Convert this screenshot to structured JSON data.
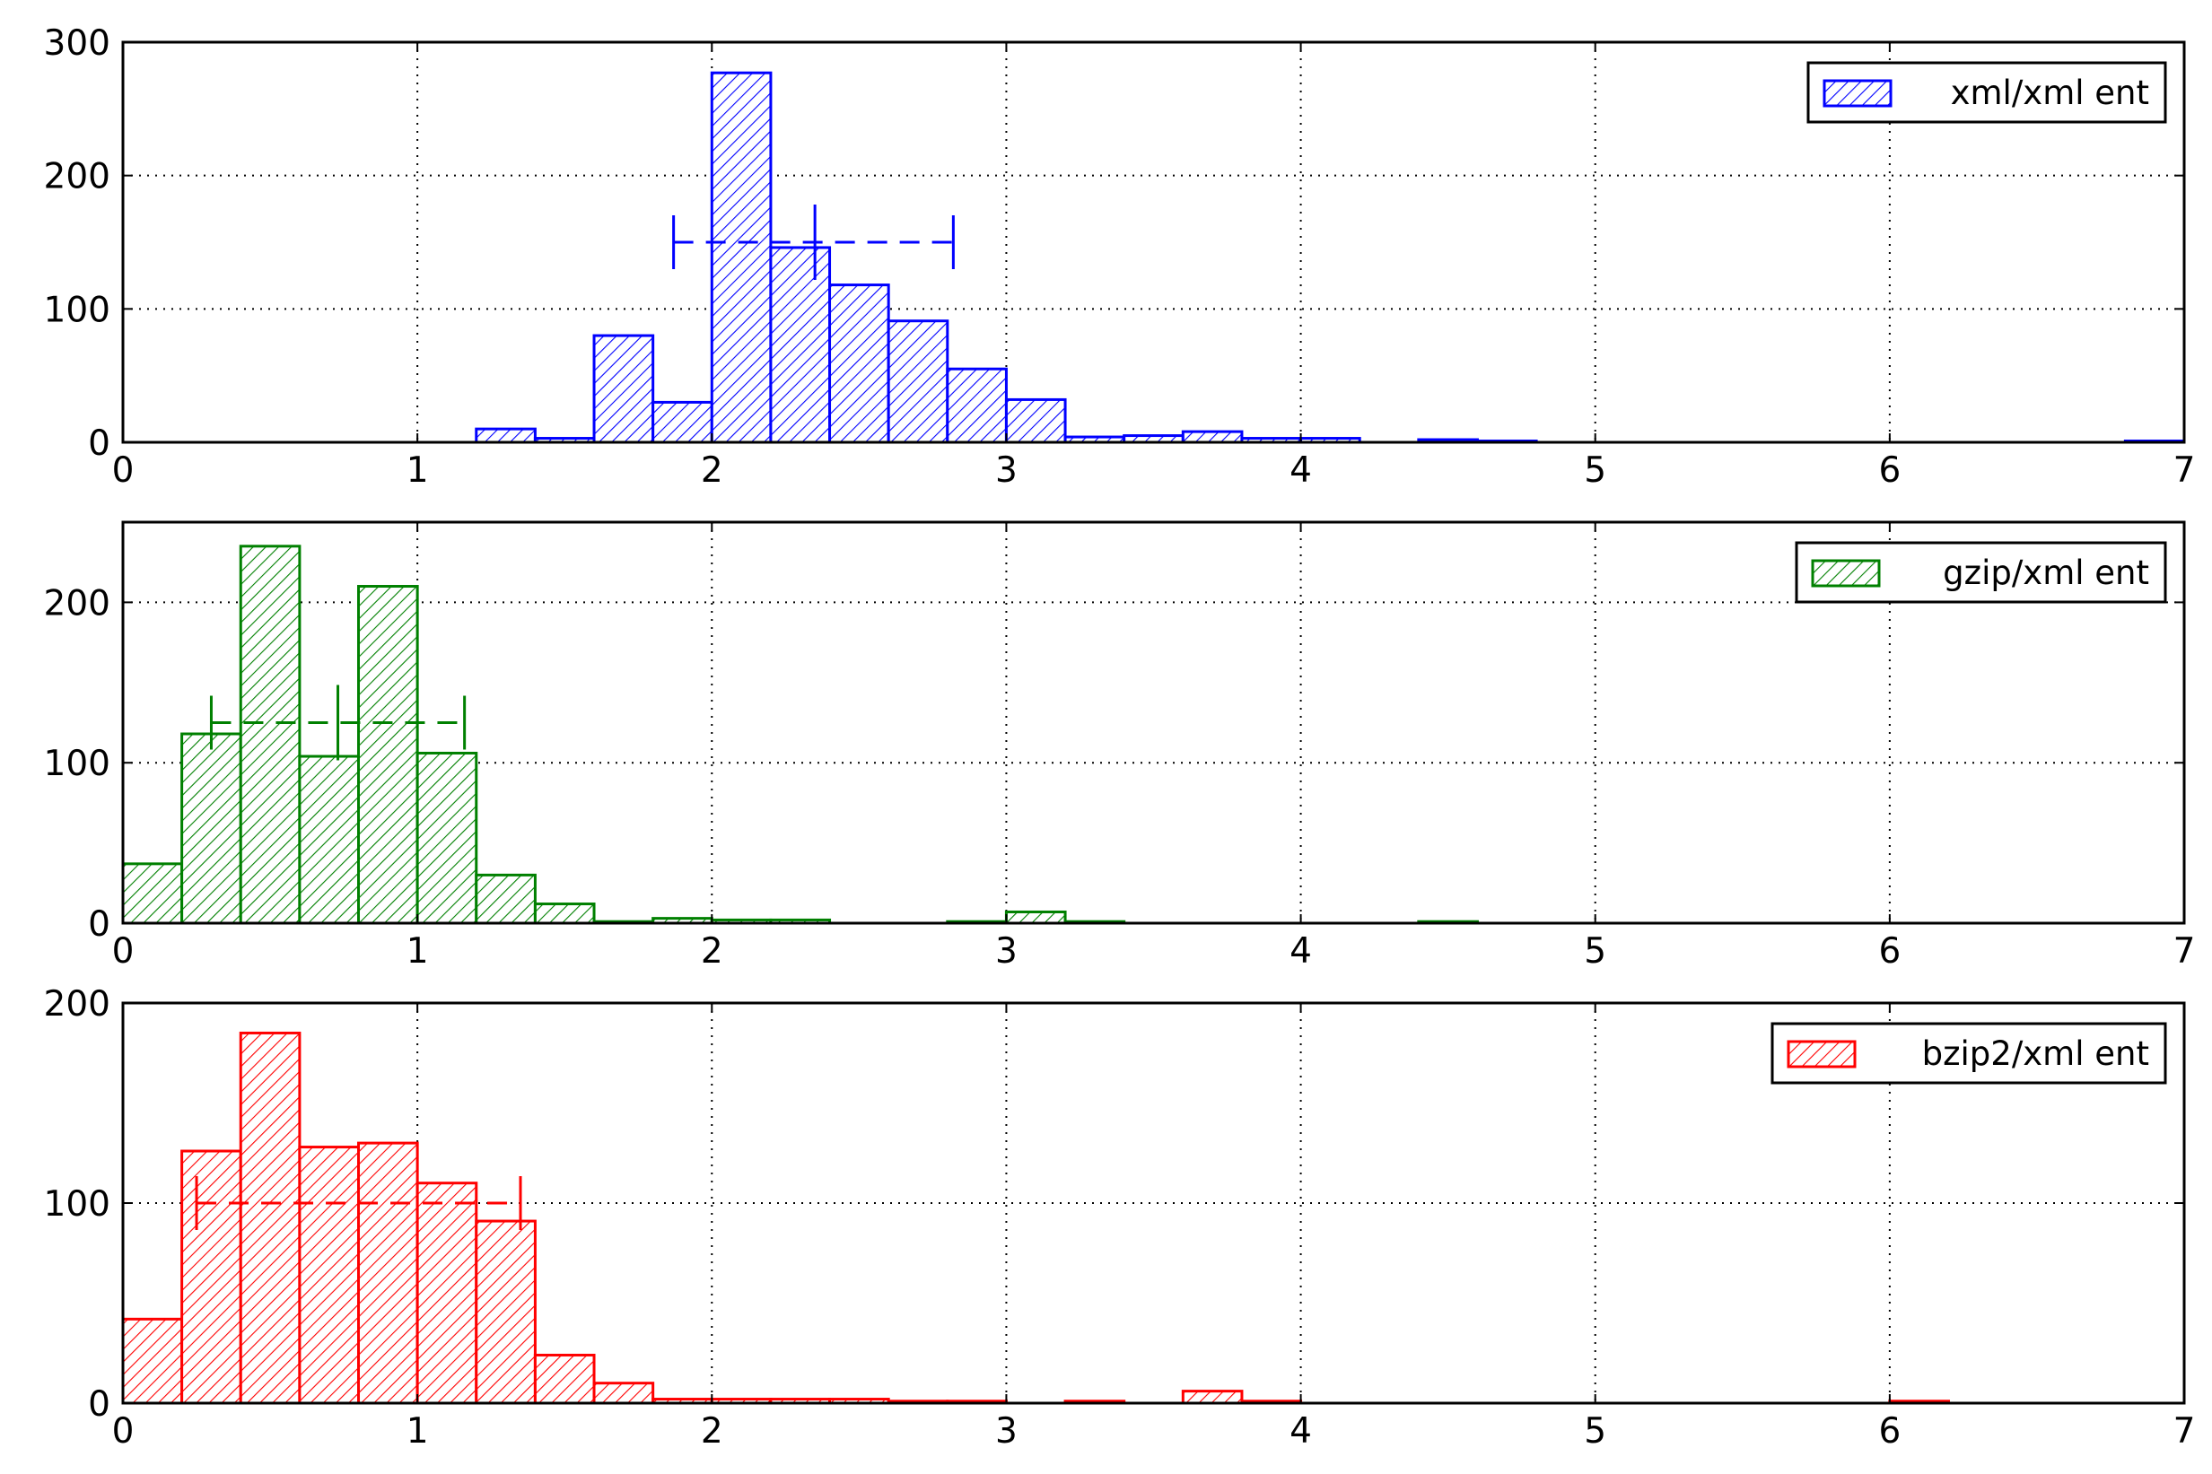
{
  "chart_data": [
    {
      "type": "bar",
      "title": "",
      "xlabel": "",
      "ylabel": "",
      "xlim": [
        0,
        7
      ],
      "ylim": [
        0,
        300
      ],
      "xticks": [
        0,
        1,
        2,
        3,
        4,
        5,
        6,
        7
      ],
      "yticks": [
        0,
        100,
        200,
        300
      ],
      "grid": true,
      "legend_position": "top-right",
      "series": [
        {
          "name": "xml/xml ent",
          "color": "#0000ff",
          "hatch": "diagonal",
          "bin_width": 0.2,
          "bin_starts": [
            1.2,
            1.4,
            1.6,
            1.8,
            2.0,
            2.2,
            2.4,
            2.6,
            2.8,
            3.0,
            3.2,
            3.4,
            3.6,
            3.8,
            4.0,
            4.4,
            4.6,
            6.8
          ],
          "values": [
            10,
            3,
            80,
            30,
            277,
            146,
            118,
            91,
            55,
            32,
            4,
            5,
            8,
            3,
            3,
            2,
            1,
            1
          ]
        }
      ],
      "error_bar": {
        "center": 2.35,
        "low": 1.87,
        "high": 2.82,
        "y": 150,
        "color": "#0000ff"
      }
    },
    {
      "type": "bar",
      "title": "",
      "xlabel": "",
      "ylabel": "",
      "xlim": [
        0,
        7
      ],
      "ylim": [
        0,
        250
      ],
      "xticks": [
        0,
        1,
        2,
        3,
        4,
        5,
        6,
        7
      ],
      "yticks": [
        0,
        100,
        200
      ],
      "grid": true,
      "legend_position": "top-right",
      "series": [
        {
          "name": "gzip/xml ent",
          "color": "#008000",
          "hatch": "diagonal",
          "bin_width": 0.2,
          "bin_starts": [
            0.0,
            0.2,
            0.4,
            0.6,
            0.8,
            1.0,
            1.2,
            1.4,
            1.6,
            1.8,
            2.0,
            2.2,
            2.8,
            3.0,
            3.2,
            4.4
          ],
          "values": [
            37,
            118,
            235,
            104,
            210,
            106,
            30,
            12,
            1,
            3,
            2,
            2,
            1,
            7,
            1,
            1
          ]
        }
      ],
      "error_bar": {
        "center": 0.73,
        "low": 0.3,
        "high": 1.16,
        "y": 125,
        "color": "#008000"
      }
    },
    {
      "type": "bar",
      "title": "",
      "xlabel": "",
      "ylabel": "",
      "xlim": [
        0,
        7
      ],
      "ylim": [
        0,
        200
      ],
      "xticks": [
        0,
        1,
        2,
        3,
        4,
        5,
        6,
        7
      ],
      "yticks": [
        0,
        100,
        200
      ],
      "grid": true,
      "legend_position": "top-right",
      "series": [
        {
          "name": "bzip2/xml ent",
          "color": "#ff0000",
          "hatch": "diagonal",
          "bin_width": 0.2,
          "bin_starts": [
            0.0,
            0.2,
            0.4,
            0.6,
            0.8,
            1.0,
            1.2,
            1.4,
            1.6,
            1.8,
            2.0,
            2.2,
            2.4,
            2.6,
            2.8,
            3.2,
            3.6,
            3.8,
            6.0
          ],
          "values": [
            42,
            126,
            185,
            128,
            130,
            110,
            91,
            24,
            10,
            2,
            2,
            2,
            2,
            1,
            1,
            1,
            6,
            1,
            1
          ]
        }
      ],
      "error_bar": {
        "center": 0.25,
        "low": 0.25,
        "high": 1.35,
        "y": 100,
        "color": "#ff0000"
      }
    }
  ]
}
